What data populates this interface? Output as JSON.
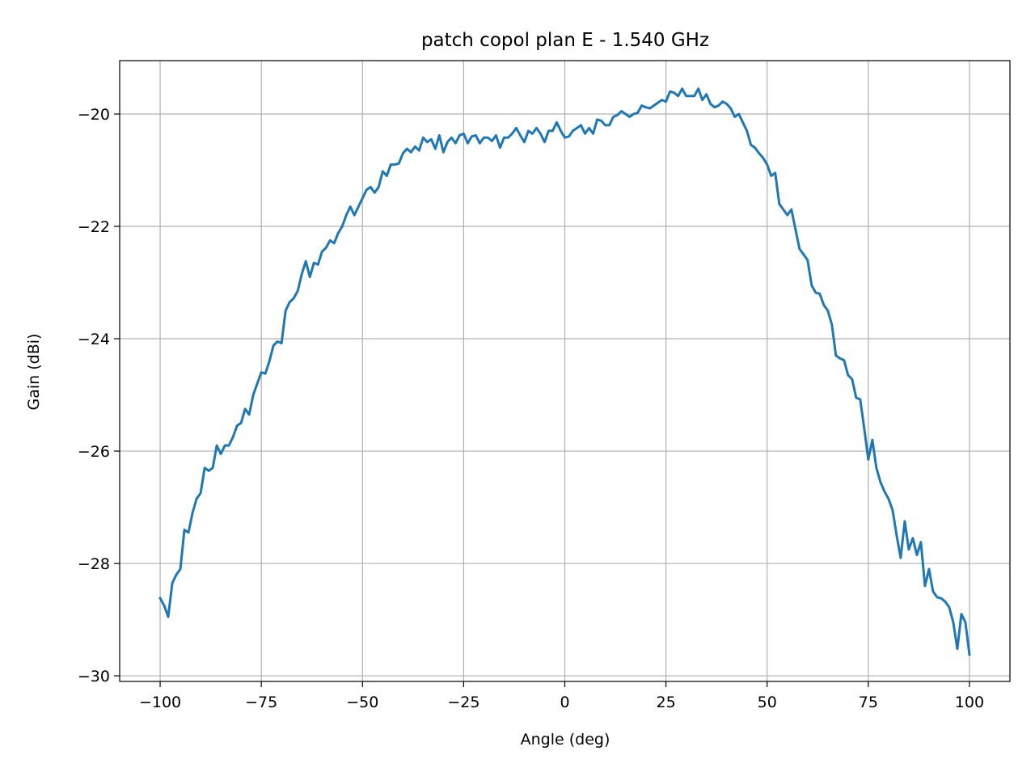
{
  "chart_data": {
    "type": "line",
    "title": "patch copol plan E - 1.540 GHz",
    "xlabel": "Angle (deg)",
    "ylabel": "Gain (dBi)",
    "xlim": [
      -110,
      110
    ],
    "ylim": [
      -30.1,
      -19.05
    ],
    "xticks": [
      -100,
      -75,
      -50,
      -25,
      0,
      25,
      50,
      75,
      100
    ],
    "yticks": [
      -30,
      -28,
      -26,
      -24,
      -22,
      -20
    ],
    "xtick_labels": [
      "−100",
      "−75",
      "−50",
      "−25",
      "0",
      "25",
      "50",
      "75",
      "100"
    ],
    "ytick_labels": [
      "−30",
      "−28",
      "−26",
      "−24",
      "−22",
      "−20"
    ],
    "grid": true,
    "series": [
      {
        "color": "#1f77b4",
        "x": [
          -100,
          -99,
          -98,
          -97,
          -96,
          -95,
          -94,
          -93,
          -92,
          -91,
          -90,
          -89,
          -88,
          -87,
          -86,
          -85,
          -84,
          -83,
          -82,
          -81,
          -80,
          -79,
          -78,
          -77,
          -76,
          -75,
          -74,
          -73,
          -72,
          -71,
          -70,
          -69,
          -68,
          -67,
          -66,
          -65,
          -64,
          -63,
          -62,
          -61,
          -60,
          -59,
          -58,
          -57,
          -56,
          -55,
          -54,
          -53,
          -52,
          -51,
          -50,
          -49,
          -48,
          -47,
          -46,
          -45,
          -44,
          -43,
          -42,
          -41,
          -40,
          -39,
          -38,
          -37,
          -36,
          -35,
          -34,
          -33,
          -32,
          -31,
          -30,
          -29,
          -28,
          -27,
          -26,
          -25,
          -24,
          -23,
          -22,
          -21,
          -20,
          -19,
          -18,
          -17,
          -16,
          -15,
          -14,
          -13,
          -12,
          -11,
          -10,
          -9,
          -8,
          -7,
          -6,
          -5,
          -4,
          -3,
          -2,
          -1,
          0,
          1,
          2,
          3,
          4,
          5,
          6,
          7,
          8,
          9,
          10,
          11,
          12,
          13,
          14,
          15,
          16,
          17,
          18,
          19,
          20,
          21,
          22,
          23,
          24,
          25,
          26,
          27,
          28,
          29,
          30,
          31,
          32,
          33,
          34,
          35,
          36,
          37,
          38,
          39,
          40,
          41,
          42,
          43,
          44,
          45,
          46,
          47,
          48,
          49,
          50,
          51,
          52,
          53,
          54,
          55,
          56,
          57,
          58,
          59,
          60,
          61,
          62,
          63,
          64,
          65,
          66,
          67,
          68,
          69,
          70,
          71,
          72,
          73,
          74,
          75,
          76,
          77,
          78,
          79,
          80,
          81,
          82,
          83,
          84,
          85,
          86,
          87,
          88,
          89,
          90,
          91,
          92,
          93,
          94,
          95,
          96,
          97,
          98,
          99,
          100
        ],
        "y": [
          -28.62,
          -28.75,
          -28.95,
          -28.35,
          -28.2,
          -28.1,
          -27.4,
          -27.45,
          -27.1,
          -26.85,
          -26.75,
          -26.3,
          -26.35,
          -26.3,
          -25.9,
          -26.05,
          -25.9,
          -25.9,
          -25.75,
          -25.55,
          -25.5,
          -25.25,
          -25.35,
          -25.0,
          -24.8,
          -24.6,
          -24.62,
          -24.4,
          -24.12,
          -24.05,
          -24.08,
          -23.5,
          -23.35,
          -23.28,
          -23.15,
          -22.85,
          -22.62,
          -22.9,
          -22.65,
          -22.68,
          -22.45,
          -22.38,
          -22.25,
          -22.3,
          -22.12,
          -22.0,
          -21.8,
          -21.65,
          -21.8,
          -21.65,
          -21.5,
          -21.35,
          -21.3,
          -21.4,
          -21.3,
          -21.02,
          -21.1,
          -20.9,
          -20.9,
          -20.88,
          -20.7,
          -20.62,
          -20.68,
          -20.58,
          -20.65,
          -20.42,
          -20.5,
          -20.45,
          -20.62,
          -20.38,
          -20.68,
          -20.5,
          -20.42,
          -20.52,
          -20.38,
          -20.35,
          -20.52,
          -20.4,
          -20.38,
          -20.52,
          -20.42,
          -20.42,
          -20.48,
          -20.38,
          -20.6,
          -20.42,
          -20.42,
          -20.35,
          -20.25,
          -20.38,
          -20.5,
          -20.3,
          -20.35,
          -20.25,
          -20.35,
          -20.5,
          -20.3,
          -20.3,
          -20.15,
          -20.3,
          -20.42,
          -20.4,
          -20.3,
          -20.25,
          -20.2,
          -20.35,
          -20.25,
          -20.35,
          -20.1,
          -20.12,
          -20.2,
          -20.2,
          -20.05,
          -20.02,
          -19.95,
          -20.0,
          -20.05,
          -20.0,
          -19.98,
          -19.85,
          -19.88,
          -19.9,
          -19.85,
          -19.8,
          -19.75,
          -19.78,
          -19.6,
          -19.62,
          -19.68,
          -19.55,
          -19.68,
          -19.68,
          -19.68,
          -19.55,
          -19.75,
          -19.65,
          -19.82,
          -19.88,
          -19.85,
          -19.78,
          -19.82,
          -19.9,
          -20.05,
          -20.0,
          -20.15,
          -20.3,
          -20.55,
          -20.6,
          -20.7,
          -20.78,
          -20.9,
          -21.1,
          -21.05,
          -21.6,
          -21.7,
          -21.8,
          -21.7,
          -22.05,
          -22.4,
          -22.5,
          -22.6,
          -23.05,
          -23.18,
          -23.2,
          -23.4,
          -23.5,
          -23.75,
          -24.3,
          -24.35,
          -24.38,
          -24.65,
          -24.72,
          -25.05,
          -25.08,
          -25.6,
          -26.15,
          -25.8,
          -26.3,
          -26.55,
          -26.72,
          -26.85,
          -27.05,
          -27.5,
          -27.9,
          -27.25,
          -27.75,
          -27.55,
          -27.85,
          -27.62,
          -28.4,
          -28.1,
          -28.5,
          -28.6,
          -28.62,
          -28.68,
          -28.78,
          -29.05,
          -29.52,
          -28.9,
          -29.05,
          -29.62
        ]
      }
    ]
  }
}
